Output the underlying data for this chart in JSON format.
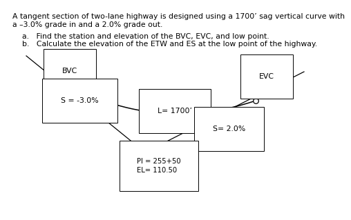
{
  "title_line1": "A tangent section of two-lane highway is designed using a 1700’ sag vertical curve with",
  "title_line2": "a –3.0% grade in and a 2.0% grade out.",
  "item_a": "a.   Find the station and elevation of the BVC, EVC, and low point.",
  "item_b": "b.   Calculate the elevation of the ETW and ES at the low point of the highway.",
  "bvc_label": "BVC",
  "evc_label": "EVC",
  "label_L": "L= 1700’",
  "label_S1": "S = -3.0%",
  "label_S2": "S= 2.0%",
  "label_PI_line1": "PI = 255+50",
  "label_PI_line2": "EL= 110.50",
  "bg_color": "#ffffff",
  "line_color": "#000000",
  "text_color": "#000000",
  "font_size": 7.8,
  "font_size_small": 7.2
}
